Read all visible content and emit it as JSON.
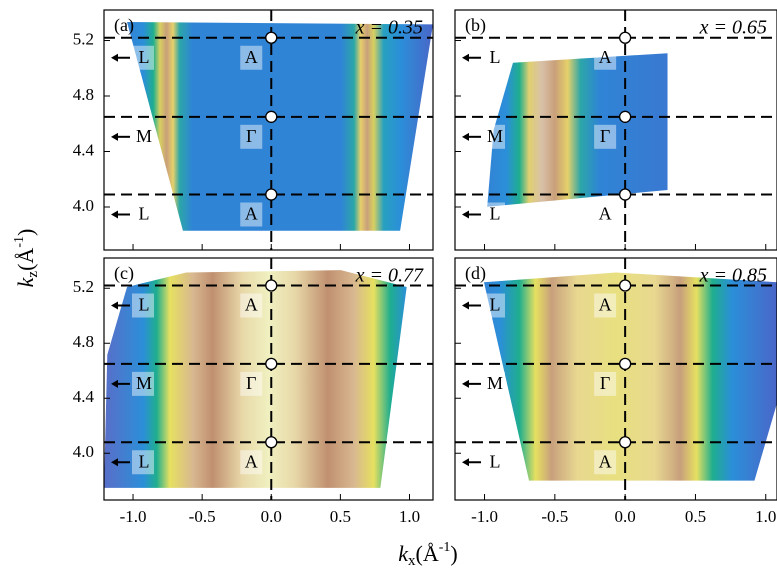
{
  "chart_data": [
    {
      "type": "map",
      "panel_label": "(a)",
      "annotation": "x = 0.35",
      "xlim": [
        -1.21,
        1.17
      ],
      "ylim": [
        3.69,
        5.42
      ],
      "xticks": [
        -1,
        -0.5,
        0,
        0.5,
        1
      ],
      "yticks": [
        {
          "value": 4,
          "label": "4.0"
        },
        4.4,
        4.8,
        5.2
      ],
      "xtick_labels": false,
      "ytick_labels": true,
      "hlines": [
        5.22,
        4.65,
        4.09
      ],
      "vline": 0,
      "point_labels": [
        "A",
        "Γ",
        "A"
      ],
      "edge_labels": [
        "L",
        "M",
        "L"
      ]
    },
    {
      "type": "map",
      "panel_label": "(b)",
      "annotation": "x = 0.65",
      "xlim": [
        -1.21,
        1.08
      ],
      "ylim": [
        3.69,
        5.42
      ],
      "xticks": [
        -1,
        -0.5,
        0,
        0.5,
        1
      ],
      "yticks": [
        4,
        4.4,
        4.8,
        5.2
      ],
      "xtick_labels": false,
      "ytick_labels": false,
      "hlines": [
        5.22,
        4.65,
        4.09
      ],
      "vline": 0,
      "point_labels": [
        "A",
        "Γ",
        "A"
      ],
      "edge_labels": [
        "L",
        "M",
        "L"
      ]
    },
    {
      "type": "map",
      "panel_label": "(c)",
      "annotation": "x = 0.77",
      "xlim": [
        -1.21,
        1.17
      ],
      "ylim": [
        3.66,
        5.42
      ],
      "xticks": [
        {
          "value": -1,
          "label": "-1.0"
        },
        -0.5,
        {
          "value": 0,
          "label": "0.0"
        },
        0.5,
        {
          "value": 1,
          "label": "1.0"
        }
      ],
      "yticks": [
        {
          "value": 4,
          "label": "4.0"
        },
        4.4,
        4.8,
        5.2
      ],
      "xtick_labels": true,
      "ytick_labels": true,
      "hlines": [
        5.22,
        4.65,
        4.08
      ],
      "vline": 0,
      "point_labels": [
        "A",
        "Γ",
        "A"
      ],
      "edge_labels": [
        "L",
        "M",
        "L"
      ]
    },
    {
      "type": "map",
      "panel_label": "(d)",
      "annotation": "x = 0.85",
      "xlim": [
        -1.21,
        1.08
      ],
      "ylim": [
        3.66,
        5.42
      ],
      "xticks": [
        {
          "value": -1,
          "label": "-1.0"
        },
        -0.5,
        {
          "value": 0,
          "label": "0.0"
        },
        0.5,
        {
          "value": 1,
          "label": "1.0"
        }
      ],
      "yticks": [
        4,
        4.4,
        4.8,
        5.2
      ],
      "xtick_labels": true,
      "ytick_labels": false,
      "hlines": [
        5.22,
        4.65,
        4.08
      ],
      "vline": 0,
      "point_labels": [
        "A",
        "Γ",
        "A"
      ],
      "edge_labels": [
        "L",
        "M",
        "L"
      ]
    }
  ],
  "x_label": {
    "base": "k",
    "sub": "x",
    "unit": "(Å",
    "sup": "-1",
    "close": ")"
  },
  "y_label": {
    "base": "k",
    "sub": "z",
    "unit": "(Å",
    "sup": "-1",
    "close": ")"
  }
}
